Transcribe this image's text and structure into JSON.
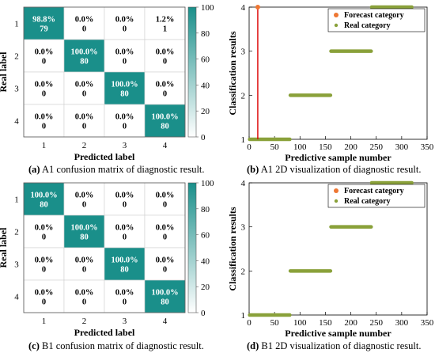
{
  "chart_data": [
    {
      "type": "heatmap",
      "panel": "(a)",
      "caption_prefix": "(a)",
      "caption_text": "A1 confusion matrix of diagnostic result.",
      "xlabel": "Predicted label",
      "ylabel": "Real label",
      "x_ticks": [
        "1",
        "2",
        "3",
        "4"
      ],
      "y_ticks": [
        "1",
        "2",
        "3",
        "4"
      ],
      "pct": [
        [
          "98.8%",
          "0.0%",
          "0.0%",
          "1.2%"
        ],
        [
          "0.0%",
          "100.0%",
          "0.0%",
          "0.0%"
        ],
        [
          "0.0%",
          "0.0%",
          "100.0%",
          "0.0%"
        ],
        [
          "0.0%",
          "0.0%",
          "0.0%",
          "100.0%"
        ]
      ],
      "counts": [
        [
          "79",
          "0",
          "0",
          "1"
        ],
        [
          "0",
          "80",
          "0",
          "0"
        ],
        [
          "0",
          "0",
          "80",
          "0"
        ],
        [
          "0",
          "0",
          "0",
          "80"
        ]
      ],
      "colorbar_ticks": [
        "0",
        "20",
        "40",
        "60",
        "80",
        "100"
      ],
      "colorbar_range": [
        0,
        100
      ]
    },
    {
      "type": "scatter",
      "panel": "(b)",
      "caption_prefix": "(b)",
      "caption_text": "A1 2D visualization of diagnostic result.",
      "xlabel": "Predictive sample number",
      "ylabel": "Classification results",
      "xlim": [
        0,
        350
      ],
      "ylim": [
        1,
        4
      ],
      "x_ticks": [
        "0",
        "50",
        "100",
        "150",
        "200",
        "250",
        "300",
        "350"
      ],
      "y_ticks": [
        "1",
        "2",
        "3",
        "4"
      ],
      "legend": [
        "Forecast category",
        "Real category"
      ],
      "real_segments": [
        [
          1,
          80,
          1
        ],
        [
          81,
          160,
          2
        ],
        [
          161,
          240,
          3
        ],
        [
          241,
          320,
          4
        ]
      ],
      "forecast_outliers": [
        {
          "x": 17,
          "y": 4
        }
      ],
      "colors": {
        "forecast": "#ee7733",
        "real": "#8aa13a",
        "marker_line": "#dd0000"
      }
    },
    {
      "type": "heatmap",
      "panel": "(c)",
      "caption_prefix": "(c)",
      "caption_text": "B1 confusion matrix of diagnostic result.",
      "xlabel": "Predicted label",
      "ylabel": "Real label",
      "x_ticks": [
        "1",
        "2",
        "3",
        "4"
      ],
      "y_ticks": [
        "1",
        "2",
        "3",
        "4"
      ],
      "pct": [
        [
          "100.0%",
          "0.0%",
          "0.0%",
          "0.0%"
        ],
        [
          "0.0%",
          "100.0%",
          "0.0%",
          "0.0%"
        ],
        [
          "0.0%",
          "0.0%",
          "100.0%",
          "0.0%"
        ],
        [
          "0.0%",
          "0.0%",
          "0.0%",
          "100.0%"
        ]
      ],
      "counts": [
        [
          "80",
          "0",
          "0",
          "0"
        ],
        [
          "0",
          "80",
          "0",
          "0"
        ],
        [
          "0",
          "0",
          "80",
          "0"
        ],
        [
          "0",
          "0",
          "0",
          "80"
        ]
      ],
      "colorbar_ticks": [
        "0",
        "20",
        "40",
        "60",
        "80",
        "100"
      ],
      "colorbar_range": [
        0,
        100
      ]
    },
    {
      "type": "scatter",
      "panel": "(d)",
      "caption_prefix": "(d)",
      "caption_text": "B1 2D visualization of diagnostic result.",
      "xlabel": "Predictive sample number",
      "ylabel": "Classification results",
      "xlim": [
        0,
        350
      ],
      "ylim": [
        1,
        4
      ],
      "x_ticks": [
        "0",
        "50",
        "100",
        "150",
        "200",
        "250",
        "300",
        "350"
      ],
      "y_ticks": [
        "1",
        "2",
        "3",
        "4"
      ],
      "legend": [
        "Forecast category",
        "Real category"
      ],
      "real_segments": [
        [
          1,
          80,
          1
        ],
        [
          81,
          160,
          2
        ],
        [
          161,
          240,
          3
        ],
        [
          241,
          320,
          4
        ]
      ],
      "forecast_outliers": [],
      "colors": {
        "forecast": "#ee7733",
        "real": "#8aa13a",
        "marker_line": "#dd0000"
      }
    }
  ],
  "heat_color": "#1a8f8a"
}
